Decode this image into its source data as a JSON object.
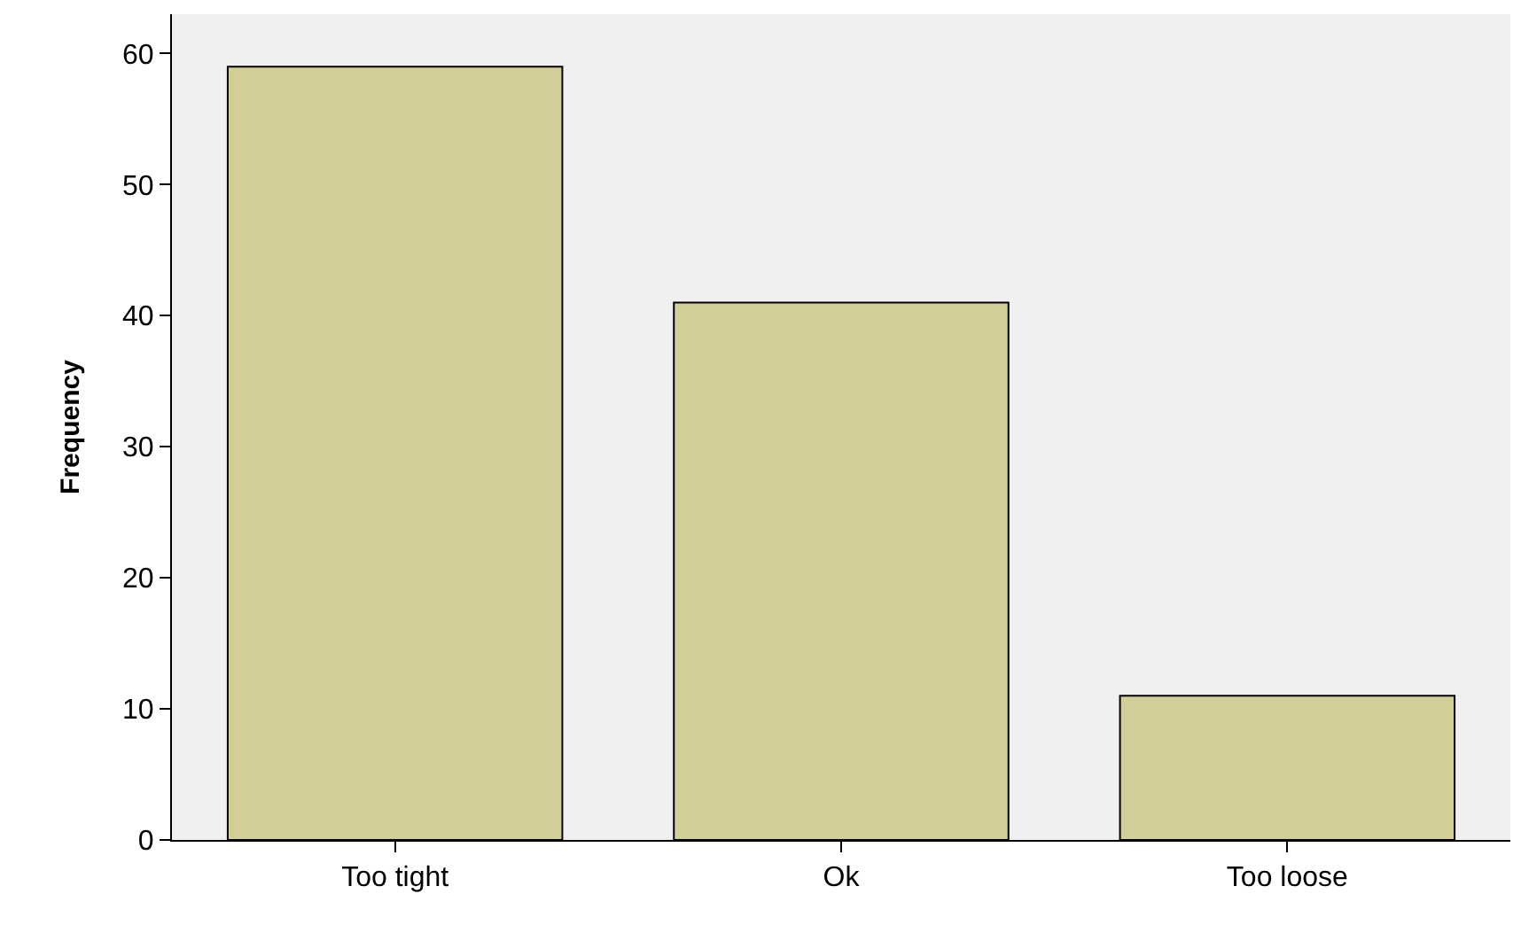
{
  "chart_data": {
    "type": "bar",
    "ylabel": "Frequency",
    "categories": [
      "Too tight",
      "Ok",
      "Too loose"
    ],
    "values": [
      59,
      41,
      11
    ],
    "color": "#d3ce97",
    "ylim": [
      0,
      63
    ],
    "yticks": [
      0,
      10,
      20,
      30,
      40,
      50,
      60
    ],
    "grid": false
  }
}
